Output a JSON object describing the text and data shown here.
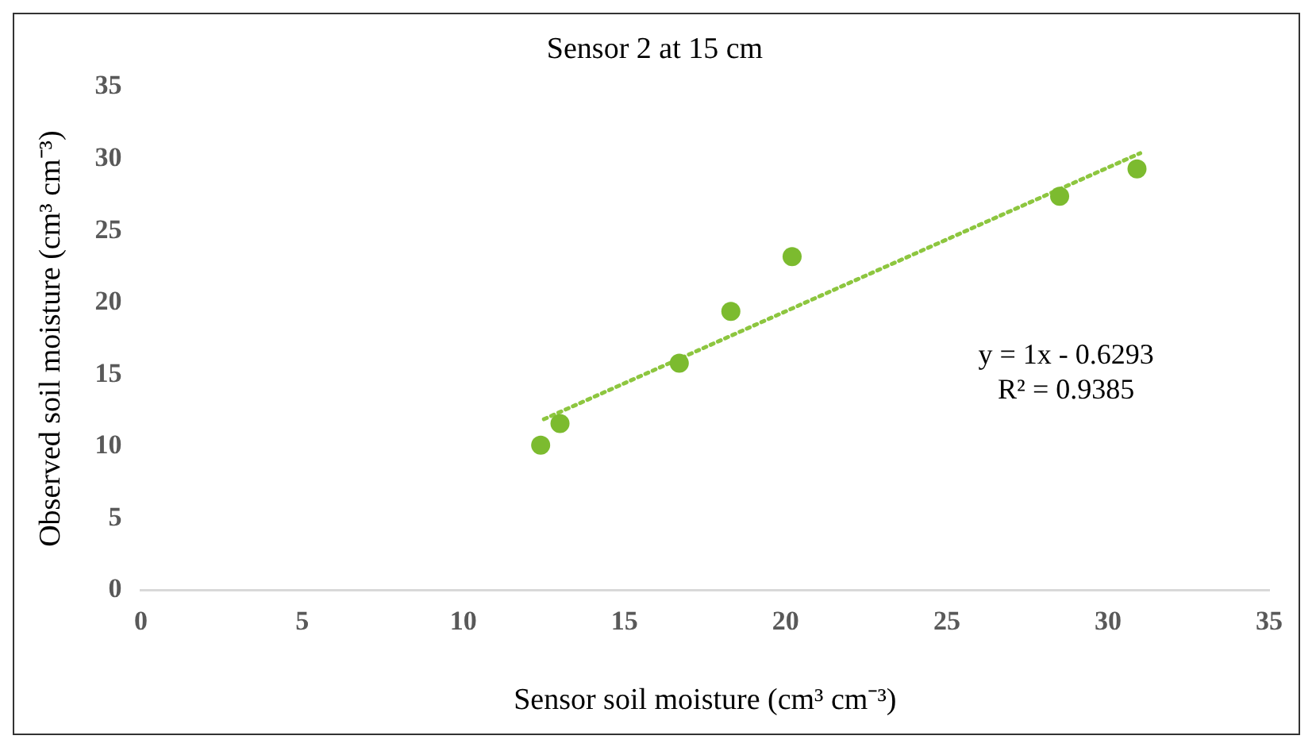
{
  "chart_data": {
    "type": "scatter",
    "title": "Sensor 2 at 15 cm",
    "xlabel": "Sensor soil moisture (cm³ cm⁻³)",
    "ylabel": "Observed soil moisture (cm³ cm⁻³)",
    "xlim": [
      0,
      35
    ],
    "xticks": [
      0,
      5,
      10,
      15,
      20,
      25,
      30,
      35
    ],
    "ylim": [
      0,
      35
    ],
    "yticks": [
      0,
      5,
      10,
      15,
      20,
      25,
      30,
      35
    ],
    "grid": false,
    "legend": false,
    "marker": "circle",
    "annotations": [
      "y = 1x - 0.6293",
      "R² = 0.9385"
    ],
    "series": [
      {
        "type": "scatter",
        "color": "#7cbb2f",
        "x": [
          12.4,
          13.0,
          16.7,
          18.3,
          20.2,
          28.5,
          30.9
        ],
        "values": [
          10.1,
          11.6,
          15.8,
          19.4,
          23.2,
          27.4,
          29.3
        ]
      },
      {
        "type": "line",
        "color": "#8dc63f",
        "line_style": "dotted",
        "marker": "none",
        "x": [
          12.5,
          31
        ],
        "values": [
          11.9,
          30.4
        ]
      }
    ]
  }
}
